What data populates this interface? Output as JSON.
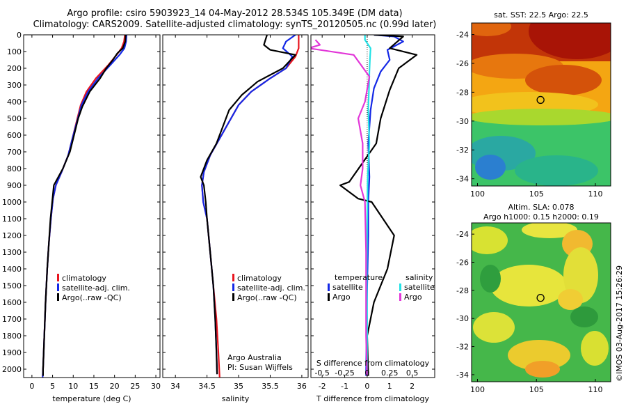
{
  "header": {
    "line1": "Argo profile: csiro 5903923_14 04-May-2012 28.534S 105.349E (DM data)",
    "line2": "Climatology: CARS2009. Satellite-adjusted climatology: synTS_20120505.nc (0.99d later)"
  },
  "watermark": "©IMOS 03-Aug-2017 15:26:29",
  "colors": {
    "clim": "#e8141e",
    "sat": "#1428e6",
    "argo": "#000000",
    "sal_sat": "#22e2e6",
    "sal_argo": "#e236d8"
  },
  "chart_data": [
    {
      "type": "line",
      "name": "temperature-profile",
      "xlabel": "temperature (deg C)",
      "xlim": [
        -2,
        31
      ],
      "ylim": [
        0,
        2050
      ],
      "xticks": [
        0,
        5,
        10,
        15,
        20,
        25,
        30
      ],
      "yticks": [
        0,
        100,
        200,
        300,
        400,
        500,
        600,
        700,
        800,
        900,
        1000,
        1100,
        1200,
        1300,
        1400,
        1500,
        1600,
        1700,
        1800,
        1900,
        2000
      ],
      "legend": {
        "placement": "center-left",
        "entries": [
          "climatology",
          "satellite-adj. clim.",
          "Argo(..raw -QC)"
        ]
      },
      "series": [
        {
          "name": "climatology",
          "color": "clim",
          "points": [
            [
              22.5,
              0
            ],
            [
              22.3,
              40
            ],
            [
              21.7,
              80
            ],
            [
              20.5,
              120
            ],
            [
              18.5,
              180
            ],
            [
              15.5,
              260
            ],
            [
              13.2,
              340
            ],
            [
              11.8,
              420
            ],
            [
              10.8,
              520
            ],
            [
              9.8,
              620
            ],
            [
              8.8,
              720
            ],
            [
              7.2,
              820
            ],
            [
              5.8,
              900
            ],
            [
              5.1,
              980
            ],
            [
              4.6,
              1100
            ],
            [
              4.1,
              1250
            ],
            [
              3.7,
              1400
            ],
            [
              3.3,
              1600
            ],
            [
              3.0,
              1800
            ],
            [
              2.7,
              2000
            ],
            [
              2.6,
              2050
            ]
          ]
        },
        {
          "name": "satellite-adj. clim.",
          "color": "sat",
          "points": [
            [
              22.9,
              0
            ],
            [
              22.8,
              40
            ],
            [
              22.4,
              80
            ],
            [
              21.2,
              120
            ],
            [
              19.0,
              180
            ],
            [
              16.0,
              260
            ],
            [
              13.6,
              340
            ],
            [
              12.0,
              420
            ],
            [
              10.9,
              520
            ],
            [
              9.8,
              620
            ],
            [
              8.8,
              720
            ],
            [
              7.2,
              820
            ],
            [
              5.8,
              900
            ],
            [
              5.1,
              980
            ],
            [
              4.6,
              1100
            ],
            [
              4.1,
              1250
            ],
            [
              3.7,
              1400
            ],
            [
              3.3,
              1600
            ],
            [
              3.0,
              1800
            ],
            [
              2.7,
              2000
            ],
            [
              2.6,
              2050
            ]
          ]
        },
        {
          "name": "Argo(..raw -QC)",
          "color": "argo",
          "points": [
            [
              22.7,
              0
            ],
            [
              22.6,
              40
            ],
            [
              22.0,
              80
            ],
            [
              20.7,
              110
            ],
            [
              19.6,
              150
            ],
            [
              18.0,
              200
            ],
            [
              16.5,
              260
            ],
            [
              14.0,
              340
            ],
            [
              12.2,
              430
            ],
            [
              11.2,
              500
            ],
            [
              10.2,
              600
            ],
            [
              9.2,
              700
            ],
            [
              7.5,
              800
            ],
            [
              5.3,
              900
            ],
            [
              4.9,
              1000
            ],
            [
              4.5,
              1100
            ],
            [
              4.1,
              1250
            ],
            [
              3.7,
              1400
            ],
            [
              3.3,
              1600
            ],
            [
              3.0,
              1800
            ],
            [
              2.7,
              2000
            ],
            [
              2.7,
              2040
            ]
          ]
        }
      ]
    },
    {
      "type": "line",
      "name": "salinity-profile",
      "xlabel": "salinity",
      "xlim": [
        33.8,
        36.1
      ],
      "ylim": [
        0,
        2050
      ],
      "xticks": [
        34,
        34.5,
        35,
        35.5,
        36
      ],
      "xticklabels": [
        "34",
        "34.5",
        "35",
        "35.5",
        "36"
      ],
      "legend": {
        "placement": "center-right",
        "entries": [
          "climatology",
          "satellite-adj. clim.",
          "Argo(..raw -QC)"
        ]
      },
      "annotation": [
        "Argo Australia",
        "PI: Susan Wijffels"
      ],
      "series": [
        {
          "name": "climatology",
          "color": "clim",
          "points": [
            [
              35.95,
              0
            ],
            [
              35.95,
              40
            ],
            [
              35.95,
              80
            ],
            [
              35.9,
              130
            ],
            [
              35.75,
              200
            ],
            [
              35.5,
              260
            ],
            [
              35.2,
              340
            ],
            [
              35.0,
              420
            ],
            [
              34.85,
              520
            ],
            [
              34.7,
              620
            ],
            [
              34.55,
              720
            ],
            [
              34.45,
              820
            ],
            [
              34.42,
              900
            ],
            [
              34.44,
              1000
            ],
            [
              34.5,
              1100
            ],
            [
              34.55,
              1300
            ],
            [
              34.6,
              1500
            ],
            [
              34.65,
              1700
            ],
            [
              34.68,
              1900
            ],
            [
              34.7,
              2050
            ]
          ]
        },
        {
          "name": "satellite-adj. clim.",
          "color": "sat",
          "points": [
            [
              35.9,
              0
            ],
            [
              35.75,
              40
            ],
            [
              35.7,
              80
            ],
            [
              35.85,
              130
            ],
            [
              35.75,
              200
            ],
            [
              35.5,
              260
            ],
            [
              35.2,
              340
            ],
            [
              35.0,
              420
            ],
            [
              34.85,
              520
            ],
            [
              34.7,
              620
            ],
            [
              34.55,
              720
            ],
            [
              34.45,
              820
            ],
            [
              34.42,
              900
            ],
            [
              34.44,
              1000
            ],
            [
              34.5,
              1100
            ],
            [
              34.55,
              1300
            ],
            [
              34.6,
              1500
            ],
            [
              34.63,
              1700
            ],
            [
              34.65,
              1900
            ],
            [
              34.66,
              2030
            ]
          ]
        },
        {
          "name": "Argo(..raw -QC)",
          "color": "argo",
          "points": [
            [
              35.45,
              0
            ],
            [
              35.4,
              60
            ],
            [
              35.5,
              90
            ],
            [
              35.9,
              120
            ],
            [
              35.7,
              200
            ],
            [
              35.3,
              280
            ],
            [
              35.05,
              360
            ],
            [
              34.85,
              450
            ],
            [
              34.75,
              550
            ],
            [
              34.65,
              650
            ],
            [
              34.5,
              750
            ],
            [
              34.4,
              850
            ],
            [
              34.45,
              900
            ],
            [
              34.48,
              1000
            ],
            [
              34.5,
              1100
            ],
            [
              34.55,
              1300
            ],
            [
              34.6,
              1500
            ],
            [
              34.63,
              1700
            ],
            [
              34.65,
              1900
            ],
            [
              34.66,
              2030
            ]
          ]
        }
      ]
    },
    {
      "type": "line",
      "name": "difference-profile",
      "xlabel": "T difference from climatology",
      "xlabel_top": "S difference from climatology",
      "xlim": [
        -2.5,
        3.0
      ],
      "ylim": [
        0,
        2050
      ],
      "xticks": [
        -2,
        -1,
        0,
        1,
        2
      ],
      "sticks": [
        -0.5,
        -0.25,
        0,
        0.25,
        0.5
      ],
      "sticklabels": [
        "-0.5",
        "-0.25",
        "0",
        "0.25",
        "0.5"
      ],
      "s_scale": 4,
      "legend": {
        "placement": "center",
        "group_t": "temperature",
        "group_s": "salinity",
        "entries": [
          "satellite",
          "Argo",
          "satellite",
          "Argo"
        ]
      },
      "series": [
        {
          "name": "T satellite",
          "color": "sat",
          "points": [
            [
              0.3,
              0
            ],
            [
              1.2,
              10
            ],
            [
              1.6,
              40
            ],
            [
              0.9,
              90
            ],
            [
              1.0,
              150
            ],
            [
              0.6,
              220
            ],
            [
              0.3,
              320
            ],
            [
              0.15,
              450
            ],
            [
              0.05,
              650
            ],
            [
              0.1,
              850
            ],
            [
              0.05,
              1000
            ],
            [
              0.05,
              1200
            ],
            [
              0.0,
              1500
            ],
            [
              -0.05,
              2040
            ]
          ]
        },
        {
          "name": "T Argo",
          "color": "argo",
          "points": [
            [
              0.3,
              0
            ],
            [
              1.6,
              10
            ],
            [
              1.0,
              80
            ],
            [
              2.2,
              120
            ],
            [
              1.4,
              200
            ],
            [
              1.0,
              330
            ],
            [
              0.6,
              500
            ],
            [
              0.4,
              650
            ],
            [
              -0.8,
              880
            ],
            [
              -1.2,
              900
            ],
            [
              -0.4,
              980
            ],
            [
              0.2,
              1000
            ],
            [
              1.2,
              1200
            ],
            [
              0.9,
              1400
            ],
            [
              0.3,
              1600
            ],
            [
              0.0,
              1800
            ],
            [
              0.05,
              2040
            ]
          ]
        },
        {
          "name": "S satellite",
          "color": "sal_sat",
          "points": [
            [
              -0.1,
              0
            ],
            [
              -0.1,
              30
            ],
            [
              0.15,
              80
            ],
            [
              0.12,
              150
            ],
            [
              0.1,
              220
            ],
            [
              0.08,
              320
            ],
            [
              0.05,
              450
            ],
            [
              0.1,
              650
            ],
            [
              0.02,
              850
            ],
            [
              0.0,
              1100
            ],
            [
              -0.02,
              1400
            ],
            [
              0.0,
              1700
            ],
            [
              -0.01,
              2040
            ]
          ]
        },
        {
          "name": "S Argo",
          "color": "sal_argo",
          "points": [
            [
              -2.3,
              30
            ],
            [
              -2.1,
              60
            ],
            [
              -2.6,
              80
            ],
            [
              -0.6,
              120
            ],
            [
              0.1,
              250
            ],
            [
              -0.1,
              400
            ],
            [
              -0.4,
              500
            ],
            [
              -0.2,
              650
            ],
            [
              -0.2,
              800
            ],
            [
              -0.3,
              900
            ],
            [
              -0.1,
              1000
            ],
            [
              -0.05,
              1300
            ],
            [
              -0.05,
              1600
            ],
            [
              -0.05,
              1800
            ],
            [
              -0.01,
              2040
            ]
          ]
        }
      ]
    },
    {
      "type": "heatmap",
      "name": "sst-map",
      "title": "sat. SST: 22.5 Argo: 22.5",
      "xlim": [
        99.5,
        111.3
      ],
      "ylim": [
        -34.5,
        -23.2
      ],
      "xticks": [
        100,
        105,
        110
      ],
      "yticks": [
        -24,
        -26,
        -28,
        -30,
        -32,
        -34
      ],
      "yticklabels": [
        "-24",
        "-26",
        "-28",
        "-30",
        "-32",
        "-34"
      ],
      "profile_position": [
        105.349,
        -28.534
      ]
    },
    {
      "type": "heatmap",
      "name": "sla-map",
      "title": "Altim. SLA: 0.078",
      "subtitle": "Argo h1000: 0.15 h2000: 0.19",
      "xlim": [
        99.5,
        111.3
      ],
      "ylim": [
        -34.5,
        -23.2
      ],
      "xticks": [
        100,
        105,
        110
      ],
      "yticks": [
        -24,
        -26,
        -28,
        -30,
        -32,
        -34
      ],
      "yticklabels": [
        "-24",
        "-26",
        "-28",
        "-30",
        "-32",
        "-34"
      ],
      "profile_position": [
        105.349,
        -28.534
      ]
    }
  ]
}
